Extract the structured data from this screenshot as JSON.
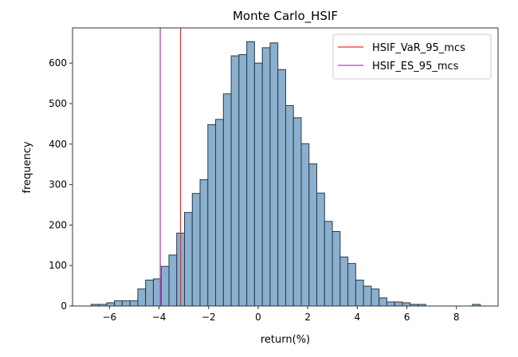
{
  "chart_data": {
    "type": "bar",
    "subtype": "histogram",
    "title": "Monte Carlo_HSIF",
    "xlabel": "return(%)",
    "ylabel": "frequency",
    "xlim": [
      -7.49,
      9.68
    ],
    "ylim": [
      0,
      687
    ],
    "bin_start": -6.74,
    "bin_width": 0.314,
    "counts": [
      4,
      4,
      8,
      13,
      13,
      13,
      42,
      64,
      67,
      98,
      126,
      180,
      231,
      278,
      312,
      448,
      461,
      524,
      618,
      621,
      653,
      600,
      638,
      650,
      584,
      495,
      465,
      401,
      351,
      279,
      209,
      184,
      121,
      105,
      64,
      49,
      42,
      20,
      10,
      10,
      8,
      4,
      4,
      0,
      0,
      0,
      0,
      0,
      0,
      4
    ],
    "xticks": [
      -6,
      -4,
      -2,
      0,
      2,
      4,
      6,
      8
    ],
    "xtick_labels": [
      "−6",
      "−4",
      "−2",
      "0",
      "2",
      "4",
      "6",
      "8"
    ],
    "yticks": [
      0,
      100,
      200,
      300,
      400,
      500,
      600
    ],
    "ytick_labels": [
      "0",
      "100",
      "200",
      "300",
      "400",
      "500",
      "600"
    ],
    "bar_color": "#8aafcf",
    "bar_edge_color": "#2b3a45",
    "vlines": [
      {
        "name": "HSIF_VaR_95_mcs",
        "x": -3.13,
        "color": "#ff2a2a"
      },
      {
        "name": "HSIF_ES_95_mcs",
        "x": -3.95,
        "color": "#cc33cc"
      }
    ],
    "legend": {
      "placement": "top-right",
      "entries": [
        "HSIF_VaR_95_mcs",
        "HSIF_ES_95_mcs"
      ]
    },
    "grid": false
  }
}
